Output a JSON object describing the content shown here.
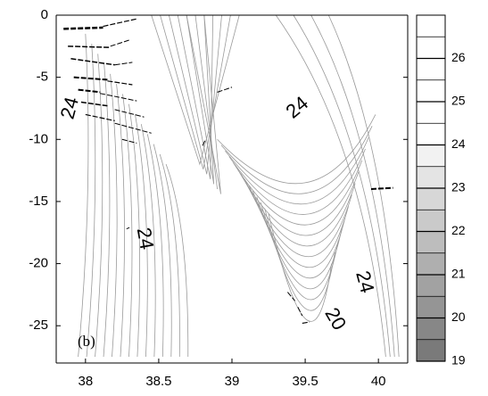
{
  "chart_data": {
    "type": "contour",
    "panel_label": "(b)",
    "xlim": [
      37.8,
      40.2
    ],
    "ylim": [
      -28,
      0
    ],
    "x_ticks": [
      {
        "value": 38,
        "label": "38"
      },
      {
        "value": 38.5,
        "label": "38.5"
      },
      {
        "value": 39,
        "label": "39"
      },
      {
        "value": 39.5,
        "label": "39.5"
      },
      {
        "value": 40,
        "label": "40"
      }
    ],
    "y_ticks": [
      {
        "value": 0,
        "label": "0"
      },
      {
        "value": -5,
        "label": "-5"
      },
      {
        "value": -10,
        "label": "-10"
      },
      {
        "value": -15,
        "label": "-15"
      },
      {
        "value": -20,
        "label": "-20"
      },
      {
        "value": -25,
        "label": "-25"
      }
    ],
    "contour_labels": [
      {
        "text": "24",
        "x": 37.9,
        "y": -7.5,
        "angle": -75
      },
      {
        "text": "24",
        "x": 38.4,
        "y": -18.0,
        "angle": 80
      },
      {
        "text": "24",
        "x": 39.45,
        "y": -7.5,
        "angle": -40
      },
      {
        "text": "24",
        "x": 39.9,
        "y": -21.5,
        "angle": 75
      },
      {
        "text": "20",
        "x": 39.7,
        "y": -24.5,
        "angle": 60
      }
    ],
    "colorbar": {
      "range": [
        19,
        27
      ],
      "tick_labels": [
        {
          "value": 19,
          "label": "19"
        },
        {
          "value": 20,
          "label": "20"
        },
        {
          "value": 21,
          "label": "21"
        },
        {
          "value": 22,
          "label": "22"
        },
        {
          "value": 23,
          "label": "23"
        },
        {
          "value": 24,
          "label": "24"
        },
        {
          "value": 25,
          "label": "25"
        },
        {
          "value": 26,
          "label": "26"
        }
      ],
      "levels": [
        19,
        19.5,
        20,
        20.5,
        21,
        21.5,
        22,
        22.5,
        23,
        23.5,
        24,
        24.5,
        25,
        25.5,
        26,
        26.5,
        27
      ],
      "colors": {
        "dark": "#7a7a7a",
        "light": "#ffffff",
        "line": "#000000",
        "contour": "#9a9a9a"
      }
    }
  }
}
